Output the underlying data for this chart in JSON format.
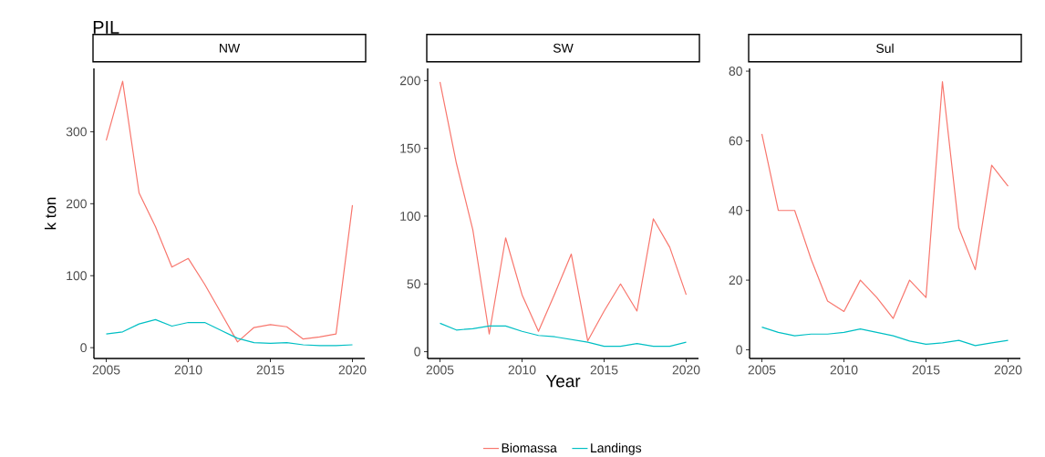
{
  "chart_data": [
    {
      "type": "line",
      "title": "NW",
      "annotations": [
        "PIL"
      ],
      "ylabel": "k ton",
      "x": [
        2005,
        2006,
        2007,
        2008,
        2009,
        2010,
        2011,
        2012,
        2013,
        2014,
        2015,
        2016,
        2017,
        2018,
        2019,
        2020
      ],
      "series": [
        {
          "color": "#f8766d",
          "values": [
            288,
            370,
            215,
            168,
            112,
            124,
            88,
            48,
            8,
            28,
            32,
            29,
            12,
            15,
            19,
            198
          ]
        },
        {
          "color": "#00bfc4",
          "values": [
            19,
            22,
            33,
            39,
            30,
            35,
            35,
            24,
            13,
            7,
            6,
            7,
            4,
            3,
            3,
            4
          ]
        }
      ],
      "xlim": [
        2004.25,
        2020.75
      ],
      "ylim": [
        -15,
        388
      ],
      "xticks": [
        2005,
        2010,
        2015,
        2020
      ],
      "yticks": [
        0,
        100,
        200,
        300
      ],
      "grid": false,
      "legend": false
    },
    {
      "type": "line",
      "title": "SW",
      "xlabel": "Year",
      "x": [
        2005,
        2006,
        2007,
        2008,
        2009,
        2010,
        2011,
        2012,
        2013,
        2014,
        2015,
        2016,
        2017,
        2018,
        2019,
        2020
      ],
      "series": [
        {
          "name": "Biomassa",
          "color": "#f8766d",
          "values": [
            199,
            139,
            90,
            13,
            84,
            42,
            15,
            43,
            72,
            8,
            30,
            50,
            30,
            98,
            77,
            42
          ]
        },
        {
          "name": "Landings",
          "color": "#00bfc4",
          "values": [
            21,
            16,
            17,
            19,
            19,
            15,
            12,
            11,
            9,
            7,
            4,
            4,
            6,
            4,
            4,
            7
          ]
        }
      ],
      "xlim": [
        2004.25,
        2020.75
      ],
      "ylim": [
        -5,
        209
      ],
      "xticks": [
        2005,
        2010,
        2015,
        2020
      ],
      "yticks": [
        0,
        50,
        100,
        150,
        200
      ],
      "grid": false,
      "legend": "bottom"
    },
    {
      "type": "line",
      "title": "Sul",
      "x": [
        2005,
        2006,
        2007,
        2008,
        2009,
        2010,
        2011,
        2012,
        2013,
        2014,
        2015,
        2016,
        2017,
        2018,
        2019,
        2020
      ],
      "series": [
        {
          "color": "#f8766d",
          "values": [
            62,
            40,
            40,
            26,
            14,
            11,
            20,
            15,
            9,
            20,
            15,
            77,
            35,
            23,
            53,
            47
          ]
        },
        {
          "color": "#00bfc4",
          "values": [
            6.5,
            5,
            4,
            4.5,
            4.5,
            5,
            6,
            5,
            4,
            2.5,
            1.6,
            2,
            2.7,
            1.2,
            2,
            2.7
          ]
        }
      ],
      "xlim": [
        2004.25,
        2020.75
      ],
      "ylim": [
        -2.5,
        80.8
      ],
      "xticks": [
        2005,
        2010,
        2015,
        2020
      ],
      "yticks": [
        0,
        20,
        40,
        60,
        80
      ],
      "grid": false,
      "legend": false
    }
  ]
}
